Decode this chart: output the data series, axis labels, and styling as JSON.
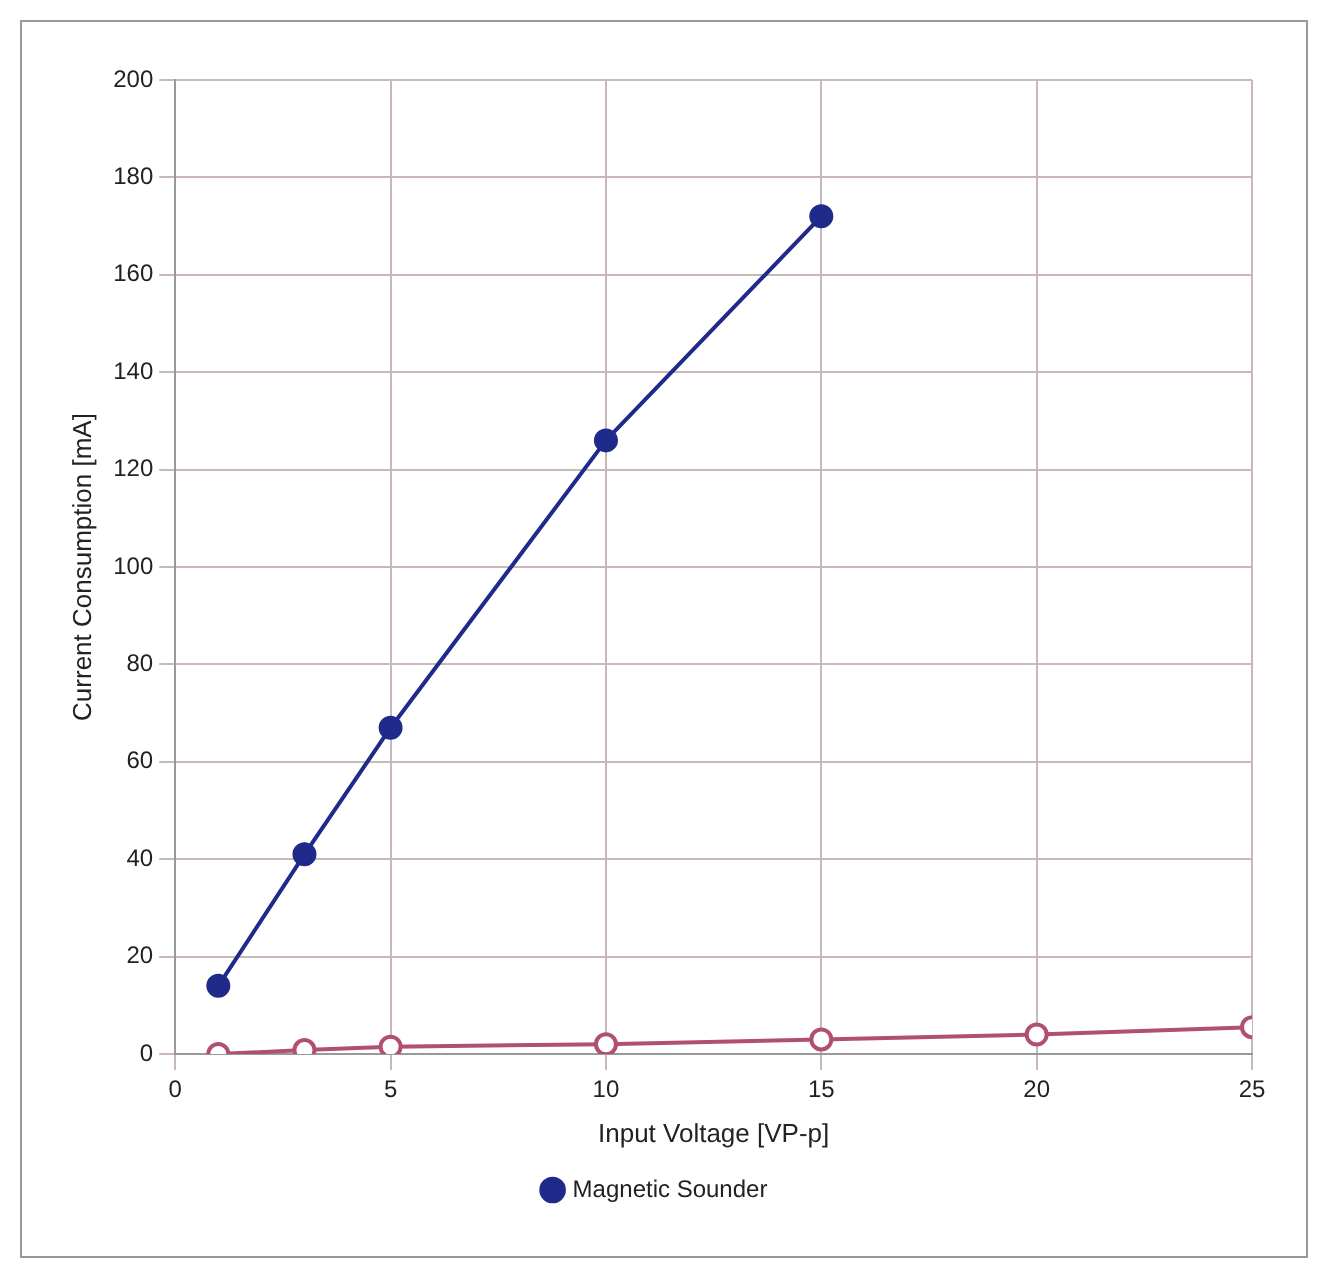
{
  "chart_data": {
    "type": "line",
    "xlabel": "Input Voltage [VP-p]",
    "ylabel": "Current Consumption [mA]",
    "xlim": [
      0,
      25
    ],
    "xticks": [
      0,
      5,
      10,
      15,
      20,
      25
    ],
    "ylim": [
      0,
      200
    ],
    "yticks": [
      0,
      20,
      40,
      60,
      80,
      100,
      120,
      140,
      160,
      180,
      200
    ],
    "grid": true,
    "legend": "bottom",
    "marker": "circle",
    "series": [
      {
        "color": "#b0506e",
        "x": [
          1,
          3,
          5,
          10,
          15,
          20,
          25
        ],
        "values": [
          0,
          0.8,
          1.5,
          2,
          3,
          4,
          5.5
        ]
      },
      {
        "name": "Magnetic Sounder",
        "color": "#1f2a8a",
        "x": [
          1,
          3,
          5,
          10,
          15
        ],
        "values": [
          14,
          41,
          67,
          126,
          172
        ]
      }
    ]
  }
}
